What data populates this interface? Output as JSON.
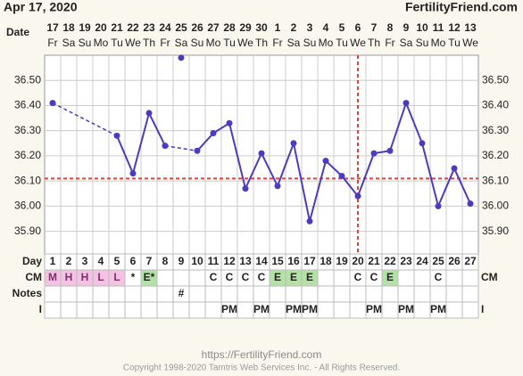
{
  "header": {
    "date": "Apr 17, 2020",
    "site": "FertilityFriend.com"
  },
  "chart_data": {
    "type": "line",
    "date_label": "Date",
    "dates": [
      "17",
      "18",
      "19",
      "20",
      "21",
      "22",
      "23",
      "24",
      "25",
      "26",
      "27",
      "28",
      "29",
      "30",
      "1",
      "2",
      "3",
      "4",
      "5",
      "6",
      "7",
      "8",
      "9",
      "10",
      "11",
      "12",
      "13"
    ],
    "weekdays": [
      "Fr",
      "Sa",
      "Su",
      "Mo",
      "Tu",
      "We",
      "Th",
      "Fr",
      "Sa",
      "Su",
      "Mo",
      "Tu",
      "We",
      "Th",
      "Fr",
      "Sa",
      "Su",
      "Mo",
      "Tu",
      "We",
      "Th",
      "Fr",
      "Sa",
      "Su",
      "Mo",
      "Tu",
      "We"
    ],
    "series": [
      {
        "color": "#4b3cbe",
        "values": [
          36.41,
          null,
          null,
          null,
          36.28,
          36.13,
          36.37,
          36.24,
          null,
          36.22,
          36.29,
          36.33,
          36.07,
          36.21,
          36.08,
          36.25,
          35.94,
          36.18,
          36.12,
          36.04,
          36.21,
          36.22,
          36.41,
          36.25,
          36.0,
          36.15,
          36.01
        ]
      },
      {
        "color": "#4b3cbe",
        "values": [
          null,
          null,
          null,
          null,
          null,
          null,
          null,
          null,
          36.59,
          null,
          null,
          null,
          null,
          null,
          null,
          null,
          null,
          null,
          null,
          null,
          null,
          null,
          null,
          null,
          null,
          null,
          null
        ]
      }
    ],
    "ylim": [
      35.81,
      36.6
    ],
    "yticks": [
      {
        "value": 35.9,
        "label": "35.90"
      },
      {
        "value": 36.0,
        "label": "36.00"
      },
      {
        "value": 36.1,
        "label": "36.10"
      },
      {
        "value": 36.2,
        "label": "36.20"
      },
      {
        "value": 36.3,
        "label": "36.30"
      },
      {
        "value": 36.4,
        "label": "36.40"
      },
      {
        "value": 36.5,
        "label": "36.50"
      }
    ],
    "grid": true,
    "coverline": 36.11,
    "marker_color": "#d9453b",
    "ovulation_day": 20
  },
  "table": {
    "row_labels": [
      "Day",
      "CM",
      "Notes",
      "I"
    ],
    "right_labels": [
      "CM",
      "I"
    ],
    "days": [
      1,
      2,
      3,
      4,
      5,
      6,
      7,
      8,
      9,
      10,
      11,
      12,
      13,
      14,
      15,
      16,
      17,
      18,
      19,
      20,
      21,
      22,
      23,
      24,
      25,
      26,
      27
    ],
    "cm": [
      "M",
      "H",
      "H",
      "L",
      "L",
      "*",
      "E*",
      null,
      null,
      null,
      "C",
      "C",
      "C",
      "C",
      "E",
      "E",
      "E",
      null,
      null,
      "C",
      "C",
      "E",
      null,
      null,
      "C",
      null,
      null
    ],
    "cm_fills": {
      "M": "#f3c3e3",
      "H": "#f3c3e3",
      "L": "#f3c3e3",
      "E": "#b4e2a6",
      "E*": "#b4e2a6"
    },
    "notes": [
      null,
      null,
      null,
      null,
      null,
      null,
      null,
      null,
      "#",
      null,
      null,
      null,
      null,
      null,
      null,
      null,
      null,
      null,
      null,
      null,
      null,
      null,
      null,
      null,
      null,
      null,
      null
    ],
    "intercourse": [
      null,
      null,
      null,
      null,
      null,
      null,
      null,
      null,
      null,
      null,
      null,
      "PM",
      null,
      "PM",
      null,
      "PM",
      "PM",
      null,
      null,
      null,
      "PM",
      null,
      "PM",
      null,
      "PM",
      null,
      null
    ]
  },
  "footer": {
    "url": "https://FertilityFriend.com",
    "copyright": "Copyright 1998-2020 Tamtris Web Services Inc. - All Rights Reserved."
  }
}
